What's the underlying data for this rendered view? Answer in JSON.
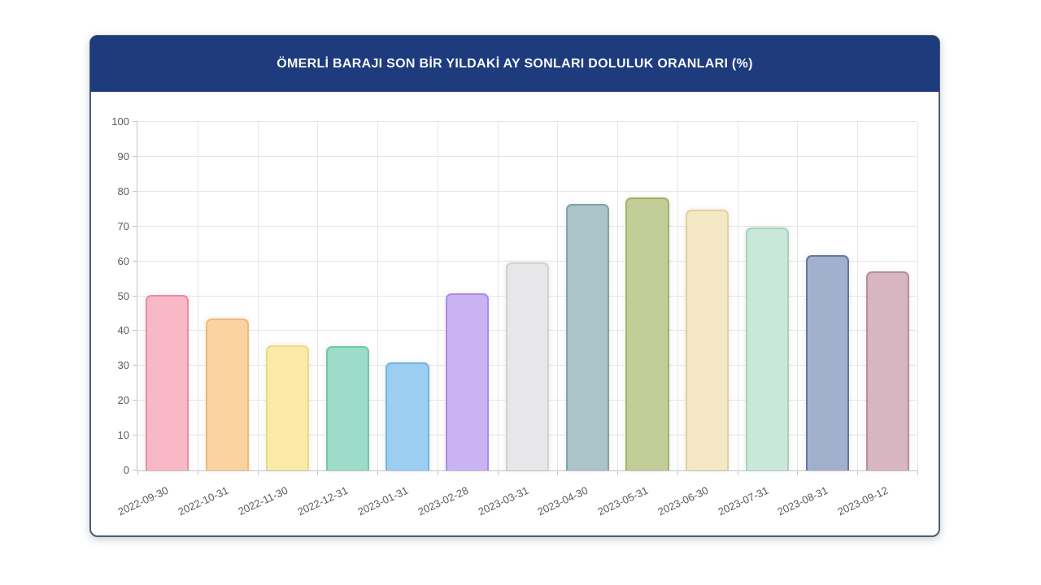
{
  "card": {
    "header": {
      "title": "ÖMERLİ BARAJI SON BİR YILDAKİ AY SONLARI DOLULUK ORANLARI (%)"
    }
  },
  "theme": {
    "header_background": "#1d3b7d",
    "header_text": "#f6f8fc",
    "card_border": "#4f5d6f",
    "grid_color": "#e6e6e9",
    "axis_color": "#c5c5ca",
    "tick_label_color": "#5a5b60",
    "page_background": "#ffffff"
  },
  "chart_data": {
    "type": "bar",
    "title": "ÖMERLİ BARAJI SON BİR YILDAKİ AY SONLARI DOLULUK ORANLARI (%)",
    "xlabel": "",
    "ylabel": "",
    "ylim": [
      0,
      100
    ],
    "yticks": [
      0,
      10,
      20,
      30,
      40,
      50,
      60,
      70,
      80,
      90,
      100
    ],
    "grid": true,
    "legend": "none",
    "categories": [
      "2022-09-30",
      "2022-10-31",
      "2022-11-30",
      "2022-12-31",
      "2023-01-31",
      "2023-02-28",
      "2023-03-31",
      "2023-04-30",
      "2023-05-31",
      "2023-06-30",
      "2023-07-31",
      "2023-08-31",
      "2023-09-12"
    ],
    "values": [
      50.4,
      43.6,
      36.0,
      35.6,
      31.0,
      50.8,
      59.7,
      76.4,
      78.3,
      74.9,
      69.8,
      61.8,
      57.1
    ],
    "bar_colors": [
      {
        "fill": "#f8b8c6",
        "border": "#ee8aa4"
      },
      {
        "fill": "#fad3a1",
        "border": "#f2b878"
      },
      {
        "fill": "#fae9a9",
        "border": "#eed981"
      },
      {
        "fill": "#9cdcc8",
        "border": "#70c7ae"
      },
      {
        "fill": "#9ccef1",
        "border": "#73b4e3"
      },
      {
        "fill": "#c9b3f0",
        "border": "#aa8ce7"
      },
      {
        "fill": "#e7e7e9",
        "border": "#d1d1d6"
      },
      {
        "fill": "#aac4c7",
        "border": "#7fa3a8"
      },
      {
        "fill": "#c2cd97",
        "border": "#a3b368"
      },
      {
        "fill": "#f3e7c4",
        "border": "#e2cf9a"
      },
      {
        "fill": "#cae8d9",
        "border": "#a3d4bb"
      },
      {
        "fill": "#a1b0cc",
        "border": "#64779e"
      },
      {
        "fill": "#d7b5c1",
        "border": "#b78da0"
      }
    ]
  }
}
